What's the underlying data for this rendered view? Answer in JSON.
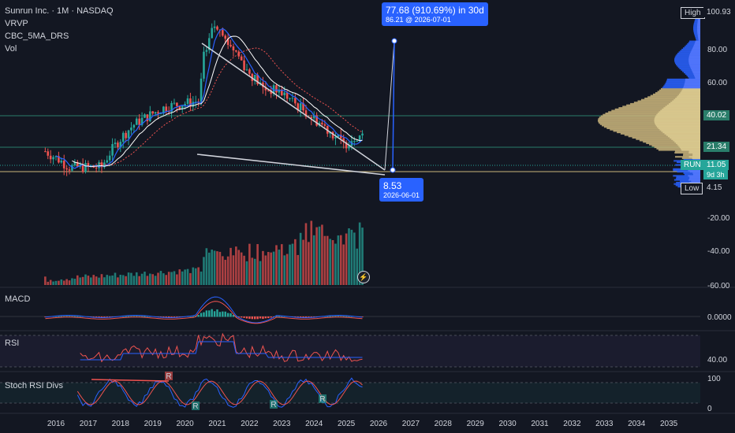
{
  "legend": {
    "symbol": "Sunrun Inc. · 1M · NASDAQ",
    "indicators": [
      "VRVP",
      "CBC_5MA_DRS",
      "Vol"
    ]
  },
  "panes": {
    "macd": "MACD",
    "rsi": "RSI",
    "stoch": "Stoch RSI Divs"
  },
  "callouts": {
    "projection": "77.68 (910.69%) in 30d",
    "target": "86.21 @ 2026-07-01",
    "start_price": "8.53",
    "start_date": "2026-06-01"
  },
  "price_scale": {
    "high_label": "High",
    "high_value": "100.93",
    "low_label": "Low",
    "low_value": "4.15",
    "level_1": "40.02",
    "level_2": "21.34",
    "symbol_tag": "RUN",
    "last_price": "11.05",
    "countdown": "9d 3h",
    "ticks": [
      "80.00",
      "60.00",
      "-20.00",
      "-40.00",
      "-60.00"
    ]
  },
  "macd_scale": [
    "0.0000"
  ],
  "rsi_scale": [
    "40.00"
  ],
  "stoch_scale": [
    "100",
    "0"
  ],
  "stoch_markers": [
    "R",
    "R",
    "R",
    "R"
  ],
  "colors": {
    "up": "#26a69a",
    "down": "#ef5350",
    "accent": "#2962ff",
    "vp_up": "#2962ff",
    "vp_val": "#c9b47b",
    "hline": "#2a7d6a",
    "background": "#131722"
  },
  "icons": [
    "lightning-icon"
  ],
  "chart_data": {
    "type": "candlestick",
    "x_axis": [
      "2016",
      "2017",
      "2018",
      "2019",
      "2020",
      "2021",
      "2022",
      "2023",
      "2024",
      "2025",
      "2026",
      "2027",
      "2028",
      "2029",
      "2030",
      "2031",
      "2032",
      "2033",
      "2034",
      "2035"
    ],
    "y_scale": "log",
    "yrange": [
      4.15,
      100.93
    ],
    "series": [
      {
        "name": "Sunrun Inc.",
        "approx_monthly_close": [
          {
            "x": "2015-09",
            "y": 8
          },
          {
            "x": "2016-06",
            "y": 6
          },
          {
            "x": "2017-06",
            "y": 6
          },
          {
            "x": "2018-06",
            "y": 13
          },
          {
            "x": "2019-06",
            "y": 18
          },
          {
            "x": "2020-06",
            "y": 20
          },
          {
            "x": "2020-12",
            "y": 70
          },
          {
            "x": "2021-06",
            "y": 55
          },
          {
            "x": "2021-12",
            "y": 35
          },
          {
            "x": "2022-06",
            "y": 25
          },
          {
            "x": "2022-12",
            "y": 24
          },
          {
            "x": "2023-06",
            "y": 19
          },
          {
            "x": "2023-12",
            "y": 15
          },
          {
            "x": "2024-06",
            "y": 12
          },
          {
            "x": "2024-12",
            "y": 9
          },
          {
            "x": "2025-06",
            "y": 11.05
          }
        ]
      }
    ],
    "horizontal_levels": [
      40.02,
      21.34,
      11.05
    ],
    "projection": {
      "from": {
        "date": "2026-06-01",
        "price": 8.53
      },
      "to": {
        "date": "2026-07-01",
        "price": 86.21
      },
      "change": "77.68 (910.69%)"
    }
  }
}
